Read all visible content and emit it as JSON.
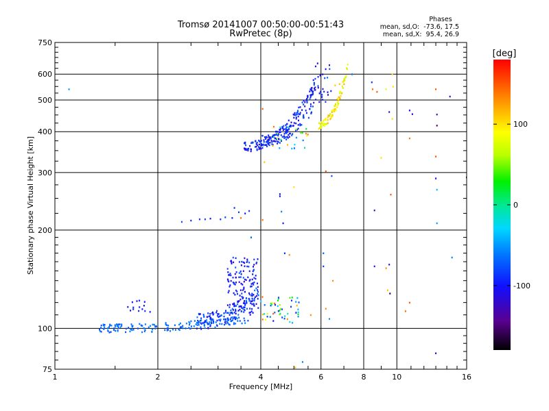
{
  "chart_data": {
    "type": "scatter",
    "title": "Tromsø 20141007 00:50:00-00:51:43",
    "subtitle": "RwPretec (8p)",
    "xlabel": "Frequency [MHz]",
    "ylabel": "Stationary phase Virtual Height [km]",
    "xscale": "log",
    "yscale": "log",
    "xlim": [
      1,
      16
    ],
    "ylim": [
      75,
      750
    ],
    "xticks": [
      1,
      2,
      4,
      6,
      8,
      10,
      16
    ],
    "xtick_labels": [
      "1",
      "2",
      "4",
      "6",
      "8",
      "10",
      "16"
    ],
    "yticks": [
      75,
      100,
      200,
      300,
      400,
      500,
      600,
      750
    ],
    "ytick_labels": [
      "75",
      "100",
      "200",
      "300",
      "400",
      "500",
      "600",
      "750"
    ],
    "grid": true,
    "phases": {
      "header": "Phases",
      "o_mode": "mean, sd,O:  -73.6, 17.5",
      "x_mode": "mean, sd,X:  95.4, 26.9"
    },
    "colorbar": {
      "label": "[deg]",
      "range": [
        -180,
        180
      ],
      "ticks": [
        100,
        0,
        -100
      ],
      "tick_labels": [
        "100",
        "0",
        "-100"
      ]
    },
    "clusters": [
      {
        "name": "e-region-ground-trace",
        "x": [
          1.35,
          3.7
        ],
        "h": [
          100,
          107
        ],
        "phase": [
          -80,
          -55
        ],
        "n": 160,
        "shape": "trace",
        "jitter": 0.03
      },
      {
        "name": "e-region-rising",
        "x": [
          2.6,
          3.9
        ],
        "h": [
          105,
          128
        ],
        "phase": [
          -110,
          -60
        ],
        "n": 120,
        "shape": "trace",
        "jitter": 0.06
      },
      {
        "name": "es-cloud",
        "x": [
          3.2,
          3.95
        ],
        "h": [
          110,
          165
        ],
        "phase": [
          -120,
          -70
        ],
        "n": 160,
        "shape": "box",
        "jitter": 0
      },
      {
        "name": "e-patch-1.7mhz",
        "x": [
          1.62,
          1.9
        ],
        "h": [
          112,
          122
        ],
        "phase": [
          -110,
          -90
        ],
        "n": 14,
        "shape": "box",
        "jitter": 0
      },
      {
        "name": "e-high-freq-mixed",
        "x": [
          4.0,
          5.2
        ],
        "h": [
          104,
          125
        ],
        "phase": [
          -100,
          150
        ],
        "n": 50,
        "shape": "box",
        "jitter": 0
      },
      {
        "name": "f-region-trace-main",
        "x": [
          3.55,
          5.8
        ],
        "h": [
          360,
          560
        ],
        "phase": [
          -120,
          -70
        ],
        "n": 160,
        "shape": "trace",
        "jitter": 0.035
      },
      {
        "name": "f-region-trace-upper",
        "x": [
          4.0,
          5.7
        ],
        "h": [
          375,
          480
        ],
        "phase": [
          -110,
          -75
        ],
        "n": 80,
        "shape": "trace",
        "jitter": 0.04
      },
      {
        "name": "f-region-x-mode",
        "x": [
          5.9,
          7.2
        ],
        "h": [
          420,
          640
        ],
        "phase": [
          60,
          120
        ],
        "n": 90,
        "shape": "trace",
        "jitter": 0.03
      },
      {
        "name": "f-region-cusp",
        "x": [
          5.7,
          6.5
        ],
        "h": [
          480,
          650
        ],
        "phase": [
          -120,
          -60
        ],
        "n": 30,
        "shape": "box",
        "jitter": 0
      },
      {
        "name": "f-region-low-branch",
        "x": [
          4.3,
          5.6
        ],
        "h": [
          355,
          420
        ],
        "phase": [
          -100,
          150
        ],
        "n": 25,
        "shape": "box",
        "jitter": 0
      }
    ],
    "points": [
      {
        "f": 1.1,
        "h": 540,
        "phase": -50
      },
      {
        "f": 2.35,
        "h": 212,
        "phase": -80
      },
      {
        "f": 2.5,
        "h": 214,
        "phase": -95
      },
      {
        "f": 2.65,
        "h": 216,
        "phase": -90
      },
      {
        "f": 2.75,
        "h": 216,
        "phase": -85
      },
      {
        "f": 2.85,
        "h": 217,
        "phase": -100
      },
      {
        "f": 3.05,
        "h": 216,
        "phase": -90
      },
      {
        "f": 3.15,
        "h": 219,
        "phase": -80
      },
      {
        "f": 3.3,
        "h": 218,
        "phase": -95
      },
      {
        "f": 3.35,
        "h": 234,
        "phase": -90
      },
      {
        "f": 3.45,
        "h": 227,
        "phase": -85
      },
      {
        "f": 3.5,
        "h": 218,
        "phase": 140
      },
      {
        "f": 3.6,
        "h": 225,
        "phase": -100
      },
      {
        "f": 3.7,
        "h": 229,
        "phase": -90
      },
      {
        "f": 3.75,
        "h": 190,
        "phase": -70
      },
      {
        "f": 4.05,
        "h": 215,
        "phase": 140
      },
      {
        "f": 4.1,
        "h": 323,
        "phase": 110
      },
      {
        "f": 4.55,
        "h": 258,
        "phase": -100
      },
      {
        "f": 4.55,
        "h": 254,
        "phase": -110
      },
      {
        "f": 4.6,
        "h": 228,
        "phase": -60
      },
      {
        "f": 4.65,
        "h": 210,
        "phase": -100
      },
      {
        "f": 5.0,
        "h": 271,
        "phase": 100
      },
      {
        "f": 5.05,
        "h": 76,
        "phase": 110
      },
      {
        "f": 5.3,
        "h": 79,
        "phase": -60
      },
      {
        "f": 4.7,
        "h": 170,
        "phase": -90
      },
      {
        "f": 4.85,
        "h": 168,
        "phase": 130
      },
      {
        "f": 5.6,
        "h": 110,
        "phase": 130
      },
      {
        "f": 6.1,
        "h": 170,
        "phase": -70
      },
      {
        "f": 6.1,
        "h": 155,
        "phase": -90
      },
      {
        "f": 6.2,
        "h": 303,
        "phase": 150
      },
      {
        "f": 6.2,
        "h": 115,
        "phase": 130
      },
      {
        "f": 6.35,
        "h": 107,
        "phase": -50
      },
      {
        "f": 6.45,
        "h": 293,
        "phase": -80
      },
      {
        "f": 6.5,
        "h": 140,
        "phase": 130
      },
      {
        "f": 8.45,
        "h": 567,
        "phase": -90
      },
      {
        "f": 8.5,
        "h": 540,
        "phase": 140
      },
      {
        "f": 8.6,
        "h": 230,
        "phase": -130
      },
      {
        "f": 8.6,
        "h": 155,
        "phase": -110
      },
      {
        "f": 8.75,
        "h": 530,
        "phase": 150
      },
      {
        "f": 9.0,
        "h": 333,
        "phase": 100
      },
      {
        "f": 9.3,
        "h": 540,
        "phase": 80
      },
      {
        "f": 9.3,
        "h": 153,
        "phase": 130
      },
      {
        "f": 9.4,
        "h": 131,
        "phase": 110
      },
      {
        "f": 9.5,
        "h": 460,
        "phase": -120
      },
      {
        "f": 9.5,
        "h": 157,
        "phase": -120
      },
      {
        "f": 9.55,
        "h": 128,
        "phase": -160
      },
      {
        "f": 9.6,
        "h": 257,
        "phase": 150
      },
      {
        "f": 9.7,
        "h": 600,
        "phase": 100
      },
      {
        "f": 9.75,
        "h": 550,
        "phase": 100
      },
      {
        "f": 9.7,
        "h": 438,
        "phase": 100
      },
      {
        "f": 10.9,
        "h": 465,
        "phase": -110
      },
      {
        "f": 11.1,
        "h": 453,
        "phase": -110
      },
      {
        "f": 10.9,
        "h": 382,
        "phase": 140
      },
      {
        "f": 10.9,
        "h": 120,
        "phase": 150
      },
      {
        "f": 10.6,
        "h": 113,
        "phase": 140
      },
      {
        "f": 13.0,
        "h": 540,
        "phase": 150
      },
      {
        "f": 13.1,
        "h": 452,
        "phase": -130
      },
      {
        "f": 13.1,
        "h": 418,
        "phase": -150
      },
      {
        "f": 13.0,
        "h": 336,
        "phase": 150
      },
      {
        "f": 13.0,
        "h": 288,
        "phase": -110
      },
      {
        "f": 13.1,
        "h": 266,
        "phase": -40
      },
      {
        "f": 13.1,
        "h": 210,
        "phase": -50
      },
      {
        "f": 13.0,
        "h": 84,
        "phase": -120
      },
      {
        "f": 14.3,
        "h": 513,
        "phase": -120
      },
      {
        "f": 14.5,
        "h": 165,
        "phase": -60
      },
      {
        "f": 16.0,
        "h": 290,
        "phase": -160
      },
      {
        "f": 6.6,
        "h": 555,
        "phase": 110
      },
      {
        "f": 6.8,
        "h": 560,
        "phase": 110
      },
      {
        "f": 7.4,
        "h": 600,
        "phase": -60
      },
      {
        "f": 6.35,
        "h": 640,
        "phase": -110
      },
      {
        "f": 4.05,
        "h": 470,
        "phase": 150
      }
    ]
  }
}
